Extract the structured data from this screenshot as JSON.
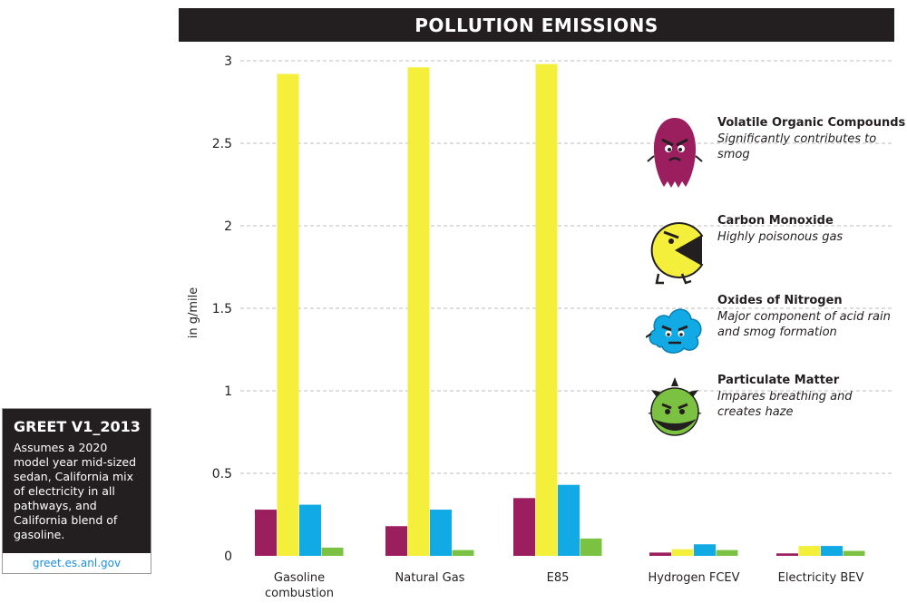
{
  "chart_data": {
    "type": "bar",
    "title": "POLLUTION EMISSIONS",
    "ylabel": "in g/mile",
    "xlabel": "",
    "ylim": [
      0,
      3
    ],
    "yticks": [
      {
        "value": 0,
        "label": "0"
      },
      {
        "value": 0.5,
        "label": "0.5"
      },
      {
        "value": 1,
        "label": "1"
      },
      {
        "value": 1.5,
        "label": "1.5"
      },
      {
        "value": 2,
        "label": "2"
      },
      {
        "value": 2.5,
        "label": "2.5"
      },
      {
        "value": 3,
        "label": "3"
      }
    ],
    "grid": true,
    "legend_position": "right",
    "categories": [
      [
        "Gasoline",
        "combustion"
      ],
      [
        "Natural Gas"
      ],
      [
        "E85"
      ],
      [
        "Hydrogen FCEV"
      ],
      [
        "Electricity BEV"
      ]
    ],
    "series": [
      {
        "name": "Volatile Organic Compounds",
        "description": "Significantly contributes to smog",
        "color": "#9b1f5f",
        "icon": "voc-blob-icon",
        "values": [
          0.28,
          0.18,
          0.35,
          0.02,
          0.015
        ]
      },
      {
        "name": "Carbon Monoxide",
        "description": "Highly poisonous gas",
        "color": "#f4ef3b",
        "icon": "carbon-monoxide-pacman-icon",
        "values": [
          2.92,
          2.96,
          2.98,
          0.04,
          0.06
        ]
      },
      {
        "name": "Oxides of Nitrogen",
        "description": "Major component of acid rain and smog formation",
        "color": "#12aae5",
        "icon": "nox-cloud-icon",
        "values": [
          0.31,
          0.28,
          0.43,
          0.07,
          0.06
        ]
      },
      {
        "name": "Particulate Matter",
        "description": "Impares breathing and creates haze",
        "color": "#7cc242",
        "icon": "particulate-spiky-icon",
        "values": [
          0.05,
          0.035,
          0.105,
          0.035,
          0.03
        ]
      }
    ]
  },
  "legend": {
    "items": [
      {
        "name": "Volatile Organic Compounds",
        "desc": "Significantly contributes to smog"
      },
      {
        "name": "Carbon Monoxide",
        "desc": "Highly poisonous gas"
      },
      {
        "name": "Oxides of Nitrogen",
        "desc": "Major component of acid rain and smog formation"
      },
      {
        "name": "Particulate Matter",
        "desc": "Impares breathing and creates haze"
      }
    ]
  },
  "info": {
    "title": "GREET V1_2013",
    "text": "Assumes a 2020 model year mid-sized sedan, California mix of electricity in all pathways, and California blend of gasoline.",
    "link": "greet.es.anl.gov"
  },
  "colors": {
    "dark": "#231f20",
    "grid": "#bdbdbd",
    "link": "#1a8fd8"
  }
}
